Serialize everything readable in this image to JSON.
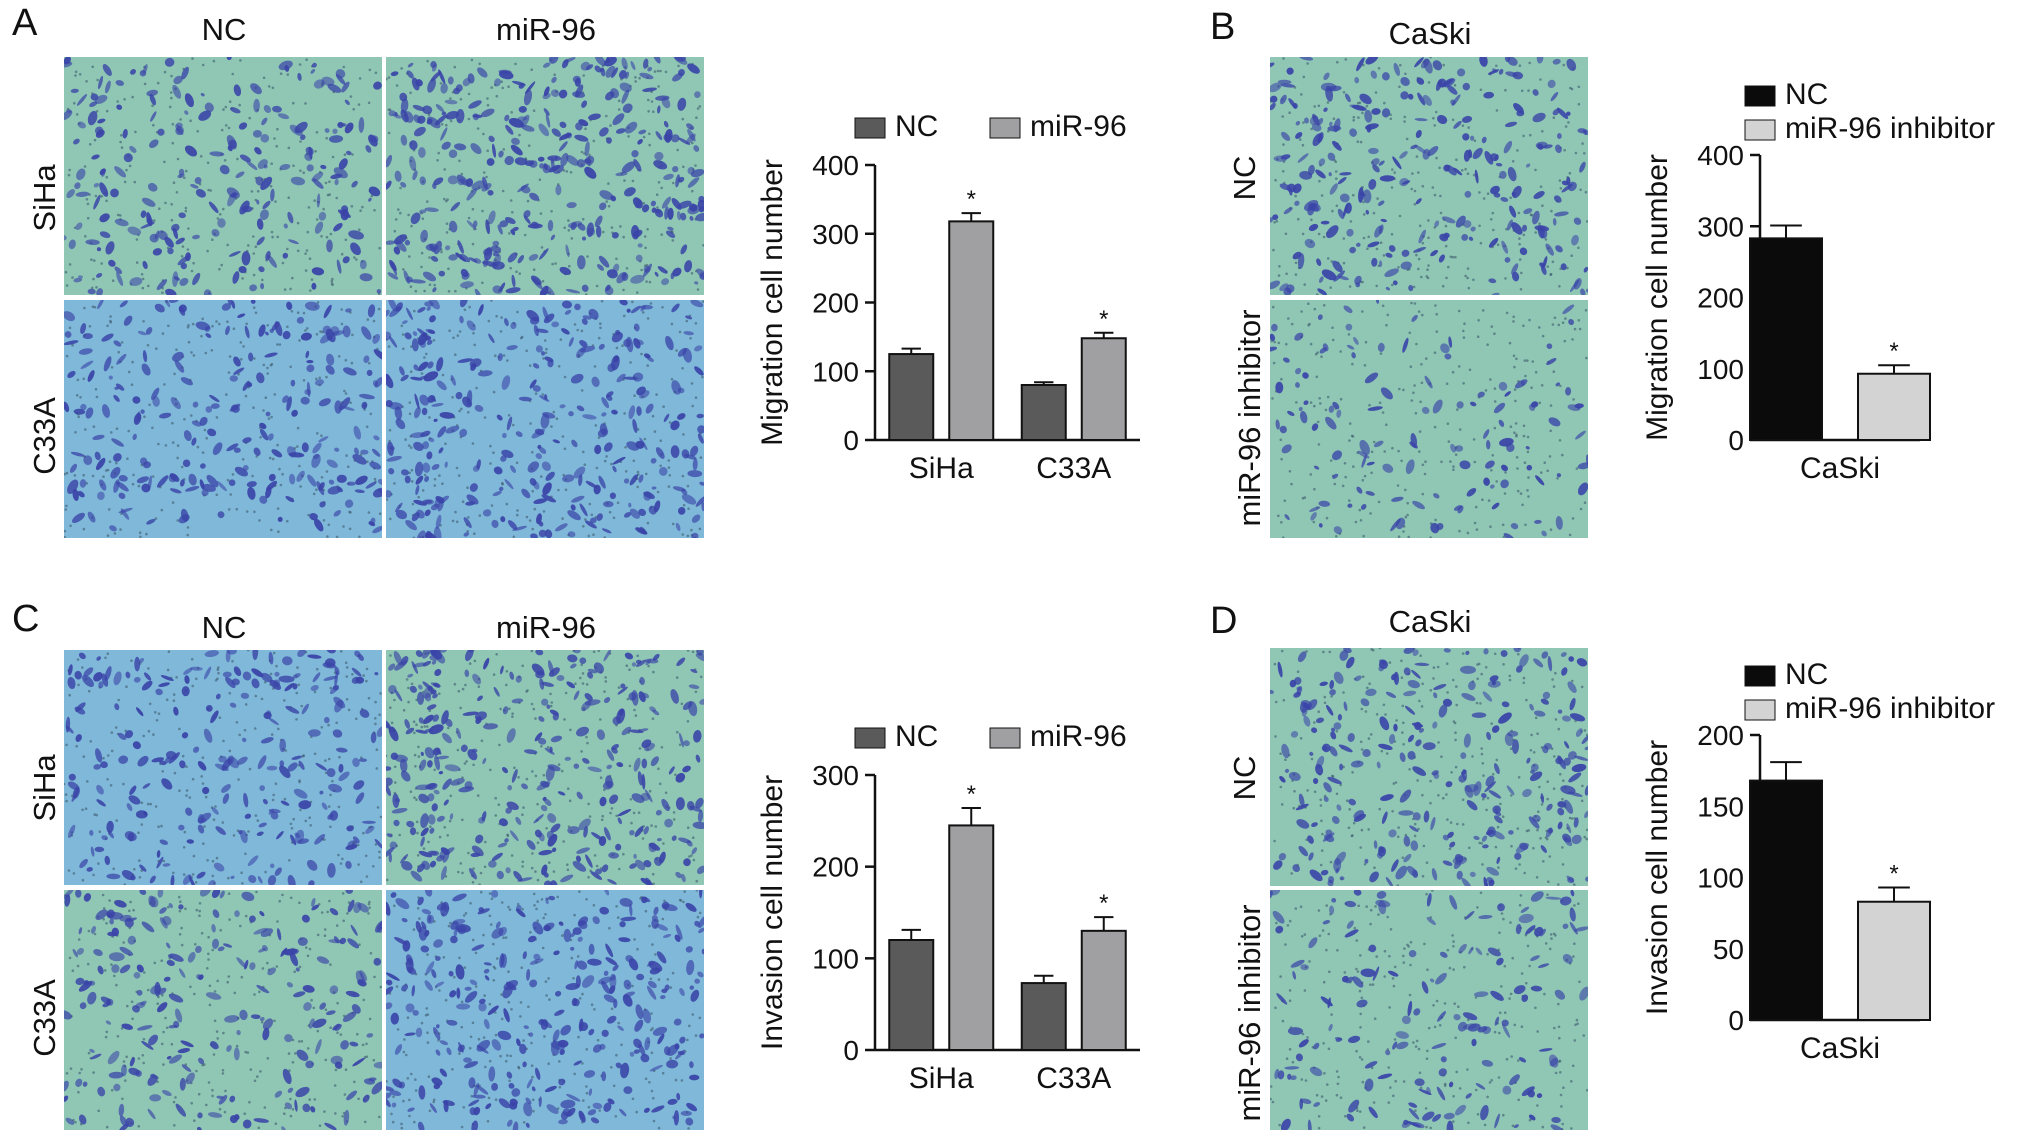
{
  "colors": {
    "nc_a": "#5a5a5a",
    "mir_a": "#a0a0a3",
    "nc_b": "#0b0b0b",
    "inh_b": "#d3d3d3",
    "field_green": "#8fc7b4",
    "field_blue": "#7fb8d8",
    "stain": "#3a44a8"
  },
  "panels": {
    "A": {
      "letter": "A",
      "col_labels": [
        "NC",
        "miR-96"
      ],
      "row_labels": [
        "SiHa",
        "C33A"
      ]
    },
    "B": {
      "letter": "B",
      "col_label": "CaSki",
      "row_labels": [
        "NC",
        "miR-96 inhibitor"
      ]
    },
    "C": {
      "letter": "C",
      "col_labels": [
        "NC",
        "miR-96"
      ],
      "row_labels": [
        "SiHa",
        "C33A"
      ]
    },
    "D": {
      "letter": "D",
      "col_label": "CaSki",
      "row_labels": [
        "NC",
        "miR-96 inhibitor"
      ]
    }
  },
  "chart_data": [
    {
      "id": "A",
      "type": "bar",
      "ylabel": "Migration cell number",
      "categories": [
        "SiHa",
        "C33A"
      ],
      "ylim": [
        0,
        400
      ],
      "yticks": [
        0,
        100,
        200,
        300,
        400
      ],
      "legend_position": "top",
      "series": [
        {
          "name": "NC",
          "values": [
            125,
            80
          ],
          "errors": [
            8,
            4
          ],
          "color": "#5a5a5a"
        },
        {
          "name": "miR-96",
          "values": [
            318,
            148
          ],
          "errors": [
            12,
            8
          ],
          "color": "#a0a0a3"
        }
      ],
      "significance": [
        null,
        "*"
      ],
      "significance_series2": [
        "*",
        "*"
      ]
    },
    {
      "id": "B",
      "type": "bar",
      "ylabel": "Migration cell number",
      "categories": [
        "CaSki"
      ],
      "ylim": [
        0,
        400
      ],
      "yticks": [
        0,
        100,
        200,
        300,
        400
      ],
      "legend_position": "top",
      "series": [
        {
          "name": "NC",
          "values": [
            283
          ],
          "errors": [
            18
          ],
          "color": "#0b0b0b"
        },
        {
          "name": "miR-96 inhibitor",
          "values": [
            93
          ],
          "errors": [
            12
          ],
          "color": "#d3d3d3"
        }
      ],
      "significance_series2": [
        "*"
      ]
    },
    {
      "id": "C",
      "type": "bar",
      "ylabel": "Invasion cell number",
      "categories": [
        "SiHa",
        "C33A"
      ],
      "ylim": [
        0,
        300
      ],
      "yticks": [
        0,
        100,
        200,
        300
      ],
      "legend_position": "top",
      "series": [
        {
          "name": "NC",
          "values": [
            120,
            73
          ],
          "errors": [
            11,
            8
          ],
          "color": "#5a5a5a"
        },
        {
          "name": "miR-96",
          "values": [
            245,
            130
          ],
          "errors": [
            19,
            15
          ],
          "color": "#a0a0a3"
        }
      ],
      "significance_series2": [
        "*",
        "*"
      ]
    },
    {
      "id": "D",
      "type": "bar",
      "ylabel": "Invasion cell number",
      "categories": [
        "CaSki"
      ],
      "ylim": [
        0,
        200
      ],
      "yticks": [
        0,
        50,
        100,
        150,
        200
      ],
      "legend_position": "top",
      "series": [
        {
          "name": "NC",
          "values": [
            168
          ],
          "errors": [
            13
          ],
          "color": "#0b0b0b"
        },
        {
          "name": "miR-96 inhibitor",
          "values": [
            83
          ],
          "errors": [
            10
          ],
          "color": "#d3d3d3"
        }
      ],
      "significance_series2": [
        "*"
      ]
    }
  ]
}
